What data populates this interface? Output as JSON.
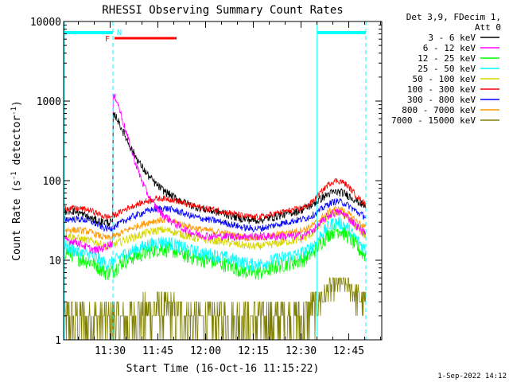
{
  "chart_data": {
    "type": "line",
    "title": "RHESSI Observing Summary Count Rates",
    "xlabel": "Start Time (16-Oct-16 11:15:22)",
    "ylabel_main": "Count Rate (s",
    "ylabel_sup1": "-1",
    "ylabel_mid": " detector",
    "ylabel_sup2": "-1",
    "ylabel_end": ")",
    "y_scale": "log",
    "ylim": [
      1,
      10000
    ],
    "xlim_minutes": [
      0,
      100
    ],
    "x_ticks": [
      {
        "label": "11:30",
        "minute": 14.63
      },
      {
        "label": "11:45",
        "minute": 29.63
      },
      {
        "label": "12:00",
        "minute": 44.63
      },
      {
        "label": "12:15",
        "minute": 59.63
      },
      {
        "label": "12:30",
        "minute": 74.63
      },
      {
        "label": "12:45",
        "minute": 89.63
      }
    ],
    "y_ticks": [
      {
        "label": "1",
        "value": 1
      },
      {
        "label": "10",
        "value": 10
      },
      {
        "label": "100",
        "value": 100
      },
      {
        "label": "1000",
        "value": 1000
      },
      {
        "label": "10000",
        "value": 10000
      }
    ],
    "legend_header": [
      "Det 3,9, FDecim 1,",
      "Att 0"
    ],
    "series": [
      {
        "name": "3 - 6 keV",
        "color": "#000000"
      },
      {
        "name": "6 - 12 keV",
        "color": "#ff00ff"
      },
      {
        "name": "12 - 25 keV",
        "color": "#00ff00"
      },
      {
        "name": "25 - 50 keV",
        "color": "#00ffff"
      },
      {
        "name": "50 - 100 keV",
        "color": "#d7d700"
      },
      {
        "name": "100 - 300 keV",
        "color": "#ff0000"
      },
      {
        "name": "300 - 800 keV",
        "color": "#0000ff"
      },
      {
        "name": "800 - 7000 keV",
        "color": "#ff9900"
      },
      {
        "name": "7000 - 15000 keV",
        "color": "#808000"
      }
    ],
    "annotations": {
      "flare_label": "F",
      "night_label": "N",
      "night_intervals_minutes": [
        [
          0,
          15.5
        ],
        [
          79.7,
          95
        ]
      ],
      "flare_interval_minutes": [
        16,
        35.5
      ],
      "saa_dashed_minutes": [
        15.5,
        95
      ]
    }
  },
  "footer": {
    "timestamp": "1-Sep-2022 14:12"
  }
}
